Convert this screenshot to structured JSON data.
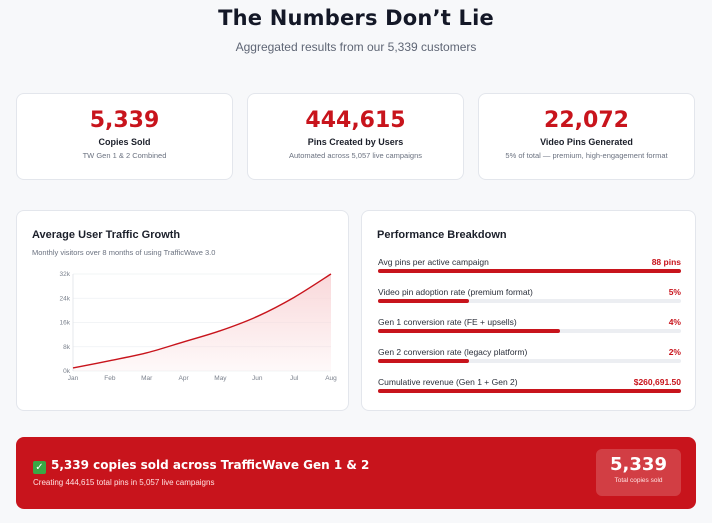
{
  "header": {
    "title": "The Numbers Don’t Lie",
    "subtitle": "Aggregated results from our 5,339 customers"
  },
  "stats": [
    {
      "value": "5,339",
      "label": "Copies Sold",
      "sub": "TW Gen 1 & 2 Combined"
    },
    {
      "value": "444,615",
      "label": "Pins Created by Users",
      "sub": "Automated across 5,057 live campaigns"
    },
    {
      "value": "22,072",
      "label": "Video Pins Generated",
      "sub": "5% of total — premium, high-engagement format"
    }
  ],
  "traffic_panel": {
    "title": "Average User Traffic Growth",
    "subtitle": "Monthly visitors over 8 months of using TrafficWave 3.0"
  },
  "chart_data": {
    "type": "area",
    "title": "Average User Traffic Growth",
    "categories": [
      "Jan",
      "Feb",
      "Mar",
      "Apr",
      "May",
      "Jun",
      "Jul",
      "Aug"
    ],
    "values": [
      1000,
      3400,
      6000,
      9600,
      13300,
      18000,
      24300,
      32000
    ],
    "y_ticks": [
      "32k",
      "24k",
      "16k",
      "8k",
      "0k"
    ],
    "ylim": [
      0,
      32000
    ],
    "grid": true,
    "colors": {
      "line": "#c8141c",
      "fill": "#f9d6d8"
    }
  },
  "breakdown": {
    "title": "Performance Breakdown",
    "rows": [
      {
        "label": "Avg pins per active campaign",
        "value": "88 pins",
        "fill": 1.0
      },
      {
        "label": "Video pin adoption rate (premium format)",
        "value": "5%",
        "fill": 0.3
      },
      {
        "label": "Gen 1 conversion rate (FE + upsells)",
        "value": "4%",
        "fill": 0.6
      },
      {
        "label": "Gen 2 conversion rate (legacy platform)",
        "value": "2%",
        "fill": 0.3
      },
      {
        "label": "Cumulative revenue (Gen 1 + Gen 2)",
        "value": "$260,691.50",
        "fill": 1.0
      }
    ]
  },
  "banner": {
    "check_glyph": "✓",
    "title": "5,339 copies sold across TrafficWave Gen 1 & 2",
    "sub": "Creating 444,615 total pins in 5,057 live campaigns",
    "badge_value": "5,339",
    "badge_label": "Total copies sold"
  },
  "colors": {
    "accent": "#c8141c",
    "check": "#3aa845"
  }
}
